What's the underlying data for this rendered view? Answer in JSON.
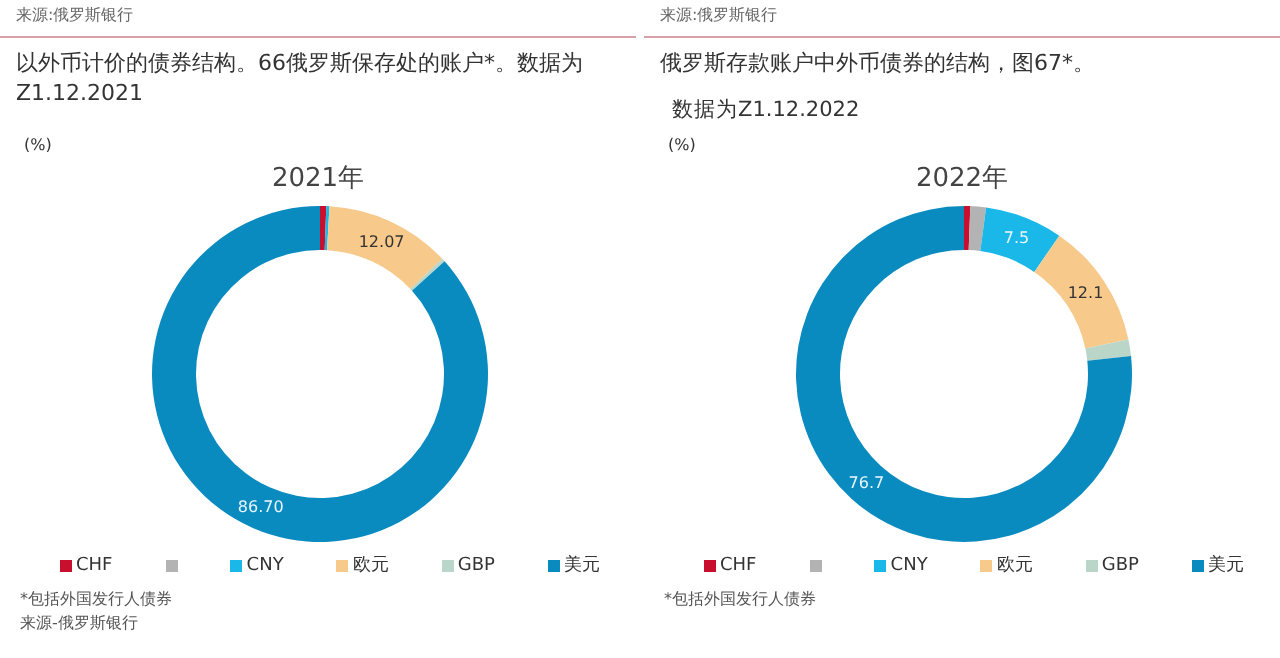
{
  "chart_data": [
    {
      "type": "donut",
      "title": "2021年",
      "subtitle": "以外币计价的债券结构。66俄罗斯保存处的账户*。数据为Z1.12.2021",
      "ylabel": "(%)",
      "annotations": [
        "来源:俄罗斯银行",
        "*包括外国发行人债券",
        "来源-俄罗斯银行"
      ],
      "categories": [
        "CHF",
        null,
        "CNY",
        "欧元",
        "GBP",
        "美元"
      ],
      "values": [
        0.6,
        0,
        0.3,
        12.07,
        0.33,
        86.7
      ],
      "value_labels": [
        null,
        null,
        null,
        "12.07",
        null,
        "86.70"
      ],
      "colors": [
        "#c8102e",
        "#b3b3b3",
        "#1ab8e8",
        "#f7c98a",
        "#b9d6c9",
        "#0a8bc0"
      ],
      "legend": "bottom"
    },
    {
      "type": "donut",
      "title": "2022年",
      "subtitle": "俄罗斯存款账户中外币债券的结构，图67*。",
      "ylabel": "(%)",
      "annotations": [
        "来源:俄罗斯银行",
        "数据为Z1.12.2022",
        "*包括外国发行人债券"
      ],
      "categories": [
        "CHF",
        null,
        "CNY",
        "欧元",
        "GBP",
        "美元"
      ],
      "values": [
        0.6,
        1.5,
        7.5,
        12.1,
        1.6,
        76.7
      ],
      "value_labels": [
        null,
        null,
        "7.5",
        "12.1",
        null,
        "76.7"
      ],
      "colors": [
        "#c8102e",
        "#b3b3b3",
        "#1ab8e8",
        "#f7c98a",
        "#b9d6c9",
        "#0a8bc0"
      ],
      "legend": "bottom"
    }
  ]
}
